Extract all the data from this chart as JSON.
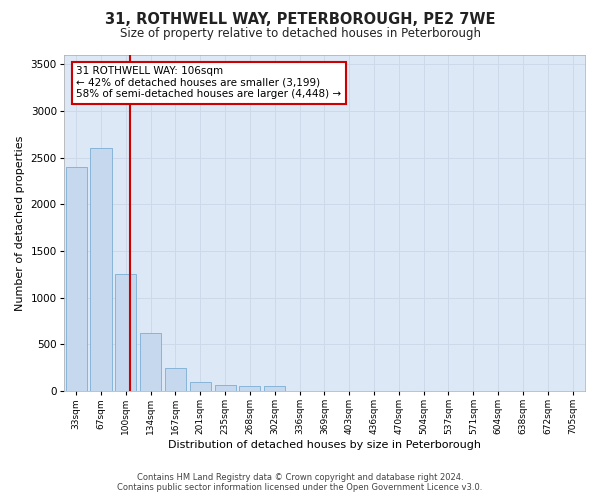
{
  "title": "31, ROTHWELL WAY, PETERBOROUGH, PE2 7WE",
  "subtitle": "Size of property relative to detached houses in Peterborough",
  "xlabel": "Distribution of detached houses by size in Peterborough",
  "ylabel": "Number of detached properties",
  "categories": [
    "33sqm",
    "67sqm",
    "100sqm",
    "134sqm",
    "167sqm",
    "201sqm",
    "235sqm",
    "268sqm",
    "302sqm",
    "336sqm",
    "369sqm",
    "403sqm",
    "436sqm",
    "470sqm",
    "504sqm",
    "537sqm",
    "571sqm",
    "604sqm",
    "638sqm",
    "672sqm",
    "705sqm"
  ],
  "values": [
    2400,
    2600,
    1250,
    620,
    250,
    100,
    70,
    60,
    50,
    0,
    0,
    0,
    0,
    0,
    0,
    0,
    0,
    0,
    0,
    0,
    0
  ],
  "bar_color": "#c5d8ee",
  "bar_edge_color": "#7aadd4",
  "red_line_x": 2.18,
  "ylim": [
    0,
    3600
  ],
  "yticks": [
    0,
    500,
    1000,
    1500,
    2000,
    2500,
    3000,
    3500
  ],
  "annotation_line1": "31 ROTHWELL WAY: 106sqm",
  "annotation_line2": "← 42% of detached houses are smaller (3,199)",
  "annotation_line3": "58% of semi-detached houses are larger (4,448) →",
  "annotation_box_color": "#ffffff",
  "annotation_box_edge": "#cc0000",
  "footer_line1": "Contains HM Land Registry data © Crown copyright and database right 2024.",
  "footer_line2": "Contains public sector information licensed under the Open Government Licence v3.0.",
  "grid_color": "#cdd8e8",
  "background_color": "#ffffff",
  "plot_bg_color": "#dce8f5"
}
